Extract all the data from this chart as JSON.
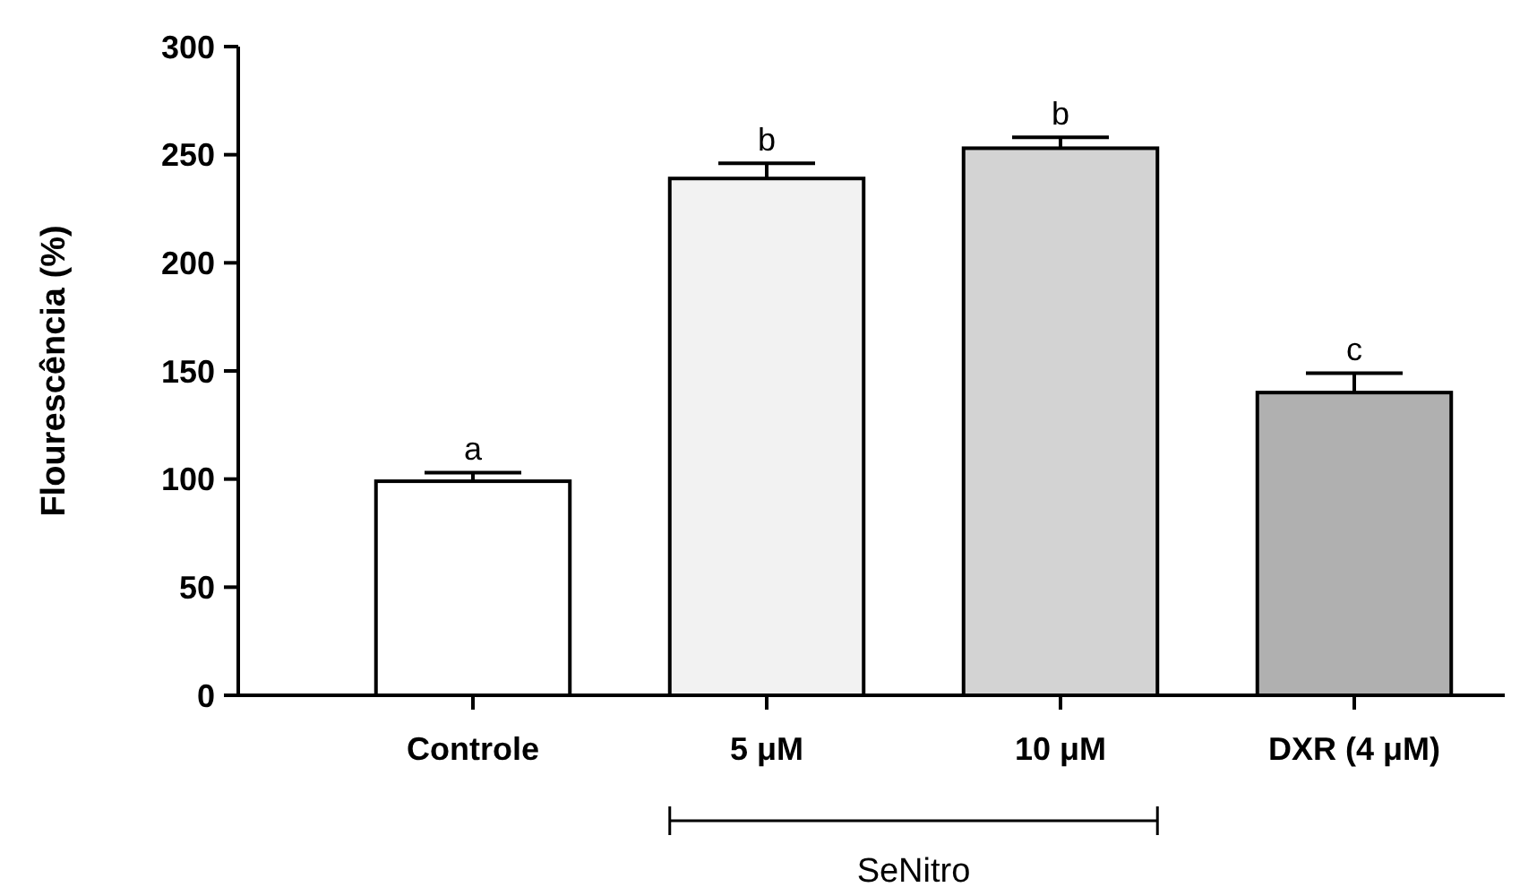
{
  "chart_data": {
    "type": "bar",
    "ylabel": "Flourescência (%)",
    "categories": [
      "Controle",
      "5 μM",
      "10 μM",
      "DXR (4 μM)"
    ],
    "values": [
      99,
      239,
      253,
      140
    ],
    "colors": [
      "#ffffff",
      "#f2f2f2",
      "#d3d3d3",
      "#b0b0b0"
    ],
    "errors": [
      [
        99,
        103
      ],
      [
        239,
        246
      ],
      [
        253,
        258
      ],
      [
        140,
        149
      ]
    ],
    "ylim": [
      0,
      300
    ],
    "yticks": [
      0,
      50,
      100,
      150,
      200,
      250,
      300
    ],
    "grid": false,
    "annotations": [
      {
        "text": "a",
        "x": "Controle",
        "y": 103
      },
      {
        "text": "b",
        "x": "5 μM",
        "y": 246
      },
      {
        "text": "b",
        "x": "10 μM",
        "y": 258
      },
      {
        "text": "c",
        "x": "DXR (4 μM)",
        "y": 149
      },
      "SeNitro"
    ]
  }
}
